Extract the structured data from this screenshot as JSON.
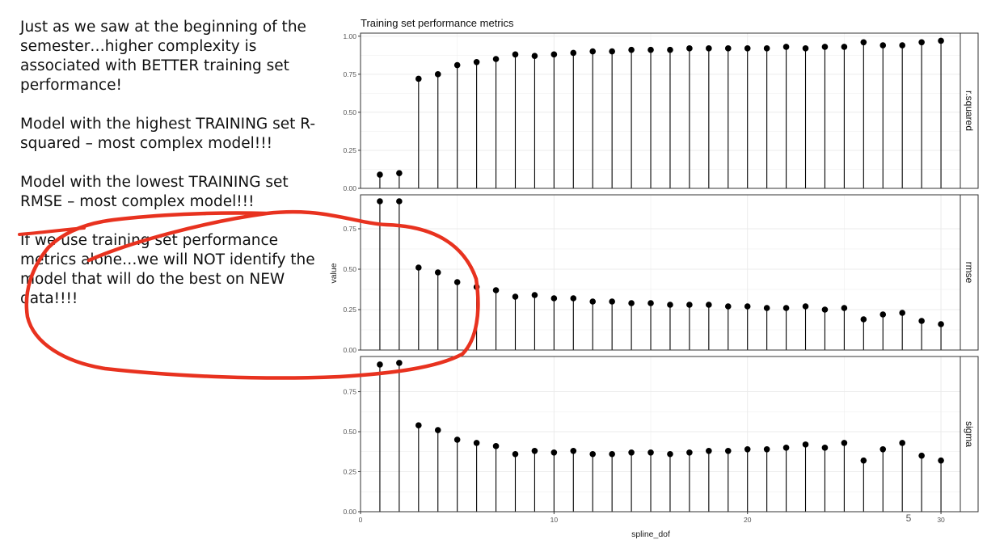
{
  "slide": {
    "paragraphs": [
      "Just as we saw at the beginning of the semester…higher complexity is associated with BETTER training set performance!",
      "Model with the highest TRAINING set R-squared – most complex model!!!",
      "Model with the lowest TRAINING set RMSE – most complex model!!!",
      "If we use training set performance metrics alone…we will NOT identify the model that will do the best on NEW data!!!!"
    ],
    "page_number": "5"
  },
  "annotation": {
    "ink_color": "#e8321f"
  },
  "colors": {
    "point": "#000000",
    "stem": "#000000",
    "panel_border": "#333333",
    "grid": "#ebebeb",
    "strip_background": "#ffffff"
  },
  "chart_data": {
    "type": "scatter",
    "style": "lollipop",
    "title": "Training set performance metrics",
    "xlabel": "spline_dof",
    "ylabel": "value",
    "xlim": [
      0,
      31
    ],
    "x_ticks": [
      0,
      10,
      20,
      30
    ],
    "facets_position": "right",
    "x": [
      1,
      2,
      3,
      4,
      5,
      6,
      7,
      8,
      9,
      10,
      11,
      12,
      13,
      14,
      15,
      16,
      17,
      18,
      19,
      20,
      21,
      22,
      23,
      24,
      25,
      26,
      27,
      28,
      29,
      30
    ],
    "panels": [
      {
        "strip": "r.squared",
        "ylim": [
          0,
          1.02
        ],
        "y_ticks": [
          "0.00",
          "0.25",
          "0.50",
          "0.75",
          "1.00"
        ],
        "y_tick_values": [
          0,
          0.25,
          0.5,
          0.75,
          1.0
        ],
        "values": [
          0.09,
          0.1,
          0.72,
          0.75,
          0.81,
          0.83,
          0.85,
          0.88,
          0.87,
          0.88,
          0.89,
          0.9,
          0.9,
          0.91,
          0.91,
          0.91,
          0.92,
          0.92,
          0.92,
          0.92,
          0.92,
          0.93,
          0.92,
          0.93,
          0.93,
          0.96,
          0.94,
          0.94,
          0.96,
          0.97
        ]
      },
      {
        "strip": "rmse",
        "ylim": [
          0,
          0.96
        ],
        "y_ticks": [
          "0.00",
          "0.25",
          "0.50",
          "0.75"
        ],
        "y_tick_values": [
          0,
          0.25,
          0.5,
          0.75
        ],
        "values": [
          0.92,
          0.92,
          0.51,
          0.48,
          0.42,
          0.39,
          0.37,
          0.33,
          0.34,
          0.32,
          0.32,
          0.3,
          0.3,
          0.29,
          0.29,
          0.28,
          0.28,
          0.28,
          0.27,
          0.27,
          0.26,
          0.26,
          0.27,
          0.25,
          0.26,
          0.19,
          0.22,
          0.23,
          0.18,
          0.16
        ]
      },
      {
        "strip": "sigma",
        "ylim": [
          0,
          0.97
        ],
        "y_ticks": [
          "0.00",
          "0.25",
          "0.50",
          "0.75"
        ],
        "y_tick_values": [
          0,
          0.25,
          0.5,
          0.75
        ],
        "values": [
          0.92,
          0.93,
          0.54,
          0.51,
          0.45,
          0.43,
          0.41,
          0.36,
          0.38,
          0.37,
          0.38,
          0.36,
          0.36,
          0.37,
          0.37,
          0.36,
          0.37,
          0.38,
          0.38,
          0.39,
          0.39,
          0.4,
          0.42,
          0.4,
          0.43,
          0.32,
          0.39,
          0.43,
          0.35,
          0.32
        ]
      }
    ]
  }
}
